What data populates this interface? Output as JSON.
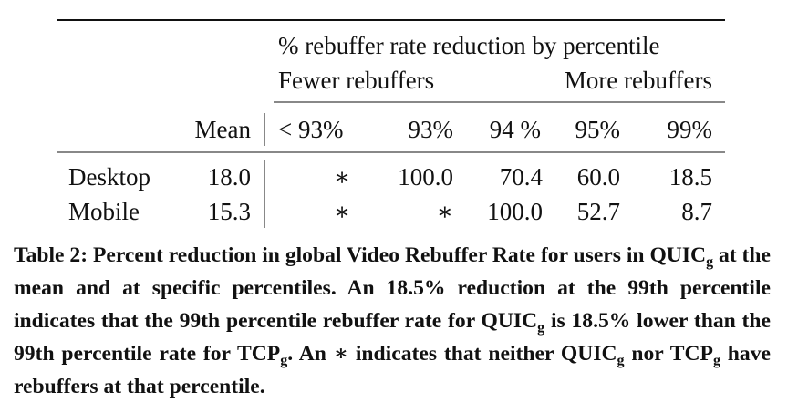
{
  "table": {
    "group_header": "% rebuffer rate reduction by percentile",
    "subheaders": [
      "Fewer rebuffers",
      "More rebuffers"
    ],
    "columns": [
      "Mean",
      "< 93%",
      "93%",
      "94 %",
      "95%",
      "99%"
    ],
    "rows": [
      {
        "label": "Desktop",
        "cells": [
          "18.0",
          "∗",
          "100.0",
          "70.4",
          "60.0",
          "18.5"
        ]
      },
      {
        "label": "Mobile",
        "cells": [
          "15.3",
          "∗",
          "∗",
          "100.0",
          "52.7",
          "8.7"
        ]
      }
    ]
  },
  "caption": [
    "Table 2: Percent reduction in global Video Rebuffer Rate for users in QUIC",
    "g",
    " at the mean and at specific percentiles. An 18.5% reduction at the 99th percentile indicates that the 99th percentile rebuffer rate for QUIC",
    "g",
    " is 18.5% lower than the 99th percentile rate for TCP",
    "g",
    ". An ∗ indicates that neither QUIC",
    "g",
    " nor TCP",
    "g",
    " have rebuffers at that percentile."
  ]
}
